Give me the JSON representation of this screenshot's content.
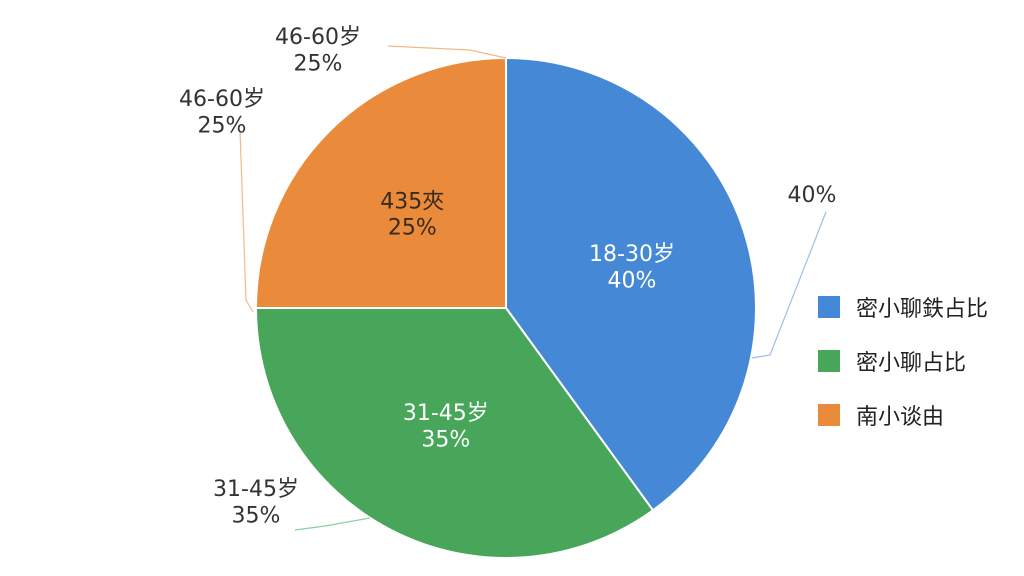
{
  "chart_data": {
    "type": "pie",
    "title": "",
    "slices": [
      {
        "label": "18-30岁",
        "value": 40,
        "value_label": "40%",
        "color": "#4589d6",
        "inner_text": [
          "18-30岁",
          "40%"
        ],
        "inner_text_color": "#ffffff",
        "outer_text": [
          "40%"
        ],
        "leader_color": "#9bbfe8"
      },
      {
        "label": "31-45岁",
        "value": 35,
        "value_label": "35%",
        "color": "#47a65a",
        "inner_text": [
          "31-45岁",
          "35%"
        ],
        "inner_text_color": "#ffffff",
        "outer_text": [
          "31-45岁",
          "35%"
        ],
        "leader_color": "#8fcf9c"
      },
      {
        "label": "46-60岁",
        "value": 25,
        "value_label": "25%",
        "color": "#ea8b3c",
        "inner_text": [
          "435夾",
          "25%"
        ],
        "inner_text_color": "#3a2a1a",
        "outer_text": [
          "46-60岁",
          "25%"
        ],
        "leader_color": "#f2b98a"
      }
    ],
    "extra_outer_label": [
      "46-60岁",
      "25%"
    ],
    "legend": {
      "position": "right",
      "entries": [
        {
          "label": "密小聊鉄占比",
          "color": "#4589d6"
        },
        {
          "label": "密小聊占比",
          "color": "#47a65a"
        },
        {
          "label": "南小谈由",
          "color": "#ea8b3c"
        }
      ]
    }
  }
}
